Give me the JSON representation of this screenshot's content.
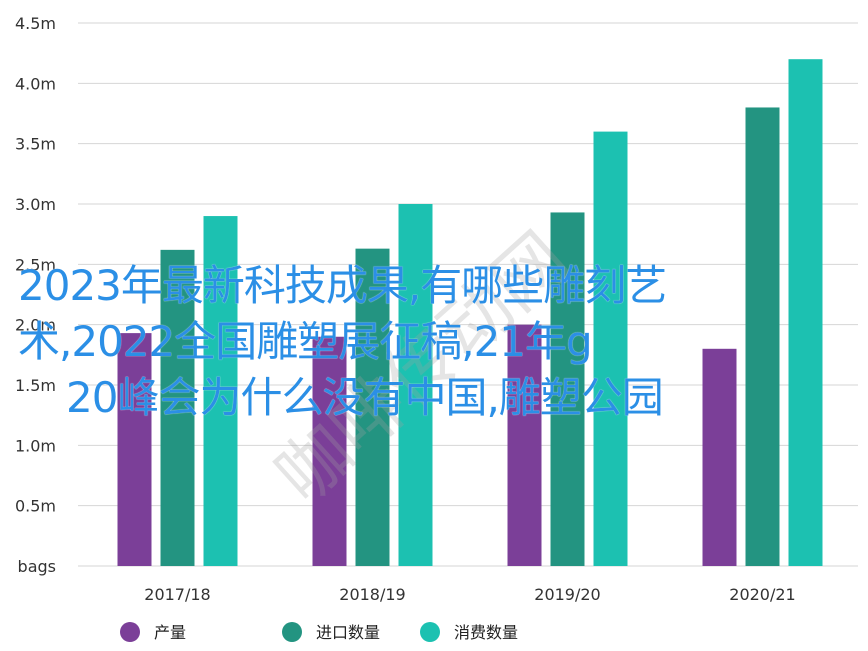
{
  "chart_data": {
    "type": "bar",
    "categories": [
      "2017/18",
      "2018/19",
      "2019/20",
      "2020/21"
    ],
    "series": [
      {
        "name": "产量",
        "color": "#7b3f98",
        "values": [
          1.93,
          1.9,
          2.0,
          1.8
        ]
      },
      {
        "name": "进口数量",
        "color": "#239481",
        "values": [
          2.62,
          2.63,
          2.93,
          3.8
        ]
      },
      {
        "name": "消费数量",
        "color": "#1cc1b1",
        "values": [
          2.9,
          3.0,
          3.6,
          4.2
        ]
      }
    ],
    "y_ticks": [
      "bags",
      "0.5m",
      "1.0m",
      "1.5m",
      "2.0m",
      "2.5m",
      "3.0m",
      "3.5m",
      "4.0m",
      "4.5m"
    ],
    "ylim": [
      0,
      4.5
    ],
    "grid": true,
    "legend_position": "bottom"
  },
  "overlay": {
    "line1": "2023年最新科技成果,有哪些雕刻艺",
    "line2": "术,2022全国雕塑展征稿,21年g",
    "line3": "20峰会为什么没有中国,雕塑公园"
  },
  "watermark": "咖啡传动网"
}
